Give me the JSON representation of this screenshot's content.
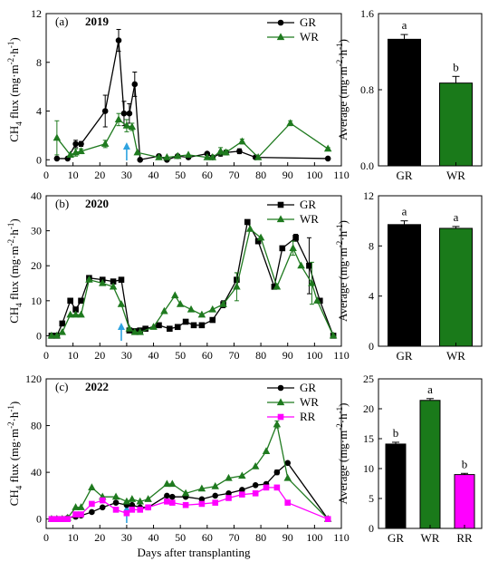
{
  "chart_data": [
    {
      "id": "line2019",
      "type": "line",
      "panel_label": "(a)",
      "year_label": "2019",
      "xlabel": "",
      "ylabel": "CH4 flux (mg·m-2·h-1)",
      "xlim": [
        0,
        110
      ],
      "ylim": [
        -0.5,
        12
      ],
      "xticks": [
        0,
        10,
        20,
        30,
        40,
        50,
        60,
        70,
        80,
        90,
        100,
        110
      ],
      "yticks": [
        0,
        4,
        8,
        12
      ],
      "arrow_x": 30,
      "legend": "top-right",
      "series": [
        {
          "name": "GR",
          "color": "#000000",
          "marker": "circle",
          "x": [
            4,
            8,
            11,
            13,
            22,
            27,
            29,
            31,
            33,
            35,
            42,
            45,
            49,
            53,
            60,
            62,
            65,
            67,
            72,
            78,
            105
          ],
          "y": [
            0.1,
            0.1,
            1.3,
            1.3,
            4,
            9.8,
            3.8,
            3.8,
            6.2,
            0,
            0.3,
            0,
            0.3,
            0.2,
            0.5,
            0.2,
            0.5,
            0.6,
            0.7,
            0.2,
            0.1
          ],
          "err": [
            0,
            0,
            0.3,
            0.2,
            1.3,
            0.9,
            1,
            0.8,
            1,
            0,
            0,
            0,
            0,
            0,
            0.1,
            0,
            0.2,
            0.2,
            0.2,
            0,
            0
          ]
        },
        {
          "name": "WR",
          "color": "#1f7a1f",
          "marker": "triangle",
          "x": [
            4,
            9,
            11,
            13,
            22,
            27,
            30,
            32,
            34,
            42,
            45,
            49,
            53,
            60,
            62,
            65,
            67,
            73,
            79,
            91,
            105
          ],
          "y": [
            1.8,
            0.4,
            0.6,
            0.7,
            1.3,
            3.3,
            2.8,
            2.7,
            0.6,
            0.2,
            0.2,
            0.3,
            0.4,
            0.2,
            0.2,
            0.7,
            0.6,
            1.5,
            0.2,
            3,
            0.9
          ],
          "err": [
            1.4,
            0,
            0.3,
            0.2,
            0.3,
            0.5,
            0.5,
            0.3,
            0,
            0,
            0,
            0,
            0,
            0,
            0,
            0.3,
            0.2,
            0.2,
            0,
            0.2,
            0.1
          ]
        }
      ]
    },
    {
      "id": "bar2019",
      "type": "bar",
      "xlabel": "",
      "ylabel": "Average (mg·m-2·h-1)",
      "categories": [
        "GR",
        "WR"
      ],
      "values": [
        1.33,
        0.87
      ],
      "errors": [
        0.05,
        0.07
      ],
      "colors": [
        "#000000",
        "#1a7a1a"
      ],
      "letters": [
        "a",
        "b"
      ],
      "ylim": [
        0,
        1.6
      ],
      "yticks": [
        0.0,
        0.8,
        1.6
      ],
      "ytick_labels": [
        "0.0",
        "0.8",
        "1.6"
      ]
    },
    {
      "id": "line2020",
      "type": "line",
      "panel_label": "(b)",
      "year_label": "2020",
      "xlabel": "",
      "ylabel": "CH4 flux (mg·m-2·h-1)",
      "xlim": [
        0,
        110
      ],
      "ylim": [
        -3,
        40
      ],
      "xticks": [
        0,
        10,
        20,
        30,
        40,
        50,
        60,
        70,
        80,
        90,
        100,
        110
      ],
      "yticks": [
        0,
        10,
        20,
        30,
        40
      ],
      "arrow_x": 28,
      "legend": "top-right",
      "series": [
        {
          "name": "GR",
          "color": "#000000",
          "marker": "square",
          "x": [
            2,
            4,
            6,
            9,
            11,
            13,
            16,
            21,
            25,
            28,
            31,
            33,
            35,
            37,
            42,
            46,
            49,
            52,
            55,
            58,
            62,
            66,
            71,
            75,
            79,
            85,
            88,
            93,
            98,
            102,
            107
          ],
          "y": [
            0,
            0,
            3.5,
            10,
            7.5,
            10,
            16.5,
            16,
            15.5,
            16,
            1.5,
            1.3,
            1.5,
            2,
            3,
            2,
            2.5,
            4,
            3,
            3,
            4.5,
            9,
            16,
            32.5,
            27,
            14,
            25,
            28,
            20,
            10,
            0
          ],
          "err": [
            0,
            0,
            0,
            0,
            0,
            0,
            0,
            0,
            0,
            0,
            0,
            0,
            0,
            0,
            0,
            0,
            0,
            0,
            0,
            0,
            0,
            1,
            2,
            0.5,
            0,
            0,
            0,
            1,
            8,
            0,
            0.5
          ]
        },
        {
          "name": "WR",
          "color": "#1f7a1f",
          "marker": "triangle",
          "x": [
            2,
            4,
            6,
            9,
            11,
            13,
            16,
            21,
            25,
            28,
            31,
            33,
            35,
            40,
            44,
            48,
            50,
            54,
            58,
            62,
            66,
            71,
            76,
            80,
            86,
            92,
            95,
            99,
            101,
            107
          ],
          "y": [
            0,
            0,
            1,
            6,
            6,
            6,
            16,
            15,
            14,
            9,
            2,
            1,
            1,
            2.5,
            7,
            11.5,
            9,
            7.5,
            6,
            7.5,
            9,
            14,
            30.5,
            28,
            14,
            25,
            20,
            15,
            10,
            0
          ],
          "err": [
            0,
            0,
            0,
            0,
            0,
            0,
            0,
            0,
            0,
            0,
            0,
            0,
            0,
            0,
            0,
            0,
            0,
            0,
            0,
            0,
            0,
            4,
            0,
            0,
            0,
            2,
            0,
            6,
            0,
            0
          ]
        }
      ]
    },
    {
      "id": "bar2020",
      "type": "bar",
      "xlabel": "",
      "ylabel": "Average (mg·m-2·h-1)",
      "categories": [
        "GR",
        "WR"
      ],
      "values": [
        9.7,
        9.4
      ],
      "errors": [
        0.3,
        0.15
      ],
      "colors": [
        "#000000",
        "#1a7a1a"
      ],
      "letters": [
        "a",
        "a"
      ],
      "ylim": [
        0,
        12
      ],
      "yticks": [
        0,
        4,
        8,
        12
      ],
      "ytick_labels": [
        "0",
        "4",
        "8",
        "12"
      ]
    },
    {
      "id": "line2022",
      "type": "line",
      "panel_label": "(c)",
      "year_label": "2022",
      "xlabel": "Days after transplanting",
      "ylabel": "CH4 flux (mg·m-2·h-1)",
      "xlim": [
        0,
        110
      ],
      "ylim": [
        -8,
        120
      ],
      "xticks": [
        0,
        10,
        20,
        30,
        40,
        50,
        60,
        70,
        80,
        90,
        100,
        110
      ],
      "yticks": [
        0,
        40,
        80,
        120
      ],
      "arrow_x": 30,
      "legend": "top-right",
      "series": [
        {
          "name": "GR",
          "color": "#000000",
          "marker": "circle",
          "x": [
            2,
            4,
            6,
            8,
            11,
            13,
            17,
            21,
            26,
            30,
            32,
            35,
            38,
            45,
            47,
            52,
            58,
            63,
            68,
            73,
            78,
            82,
            86,
            90,
            105
          ],
          "y": [
            0,
            0,
            0,
            1,
            2,
            3,
            6,
            10,
            14,
            12,
            12,
            10,
            10,
            20,
            19,
            19,
            17,
            20,
            22,
            25,
            29,
            30,
            40,
            48,
            0
          ],
          "err": [
            0,
            0,
            0,
            0,
            0,
            0,
            0,
            0,
            0,
            0,
            0,
            0,
            0,
            0,
            0,
            0,
            0,
            0,
            0,
            0,
            0,
            0,
            2,
            0,
            0
          ]
        },
        {
          "name": "WR",
          "color": "#1f7a1f",
          "marker": "triangle",
          "x": [
            2,
            4,
            6,
            8,
            11,
            13,
            17,
            21,
            26,
            30,
            32,
            35,
            38,
            45,
            47,
            52,
            58,
            63,
            68,
            73,
            78,
            82,
            86,
            90,
            105
          ],
          "y": [
            0,
            0,
            0,
            1,
            10,
            10,
            27,
            19,
            19,
            15,
            17,
            15,
            17,
            30,
            30,
            22,
            26,
            28,
            35,
            37,
            45,
            58,
            81,
            35,
            0
          ],
          "err": [
            0,
            0,
            0,
            0,
            0,
            0,
            0,
            0,
            0,
            0,
            0,
            0,
            0,
            0,
            0,
            0,
            0,
            0,
            0,
            0,
            0,
            0,
            3,
            0,
            0
          ]
        },
        {
          "name": "RR",
          "color": "#ff00ff",
          "marker": "square",
          "x": [
            2,
            4,
            6,
            8,
            11,
            13,
            17,
            21,
            26,
            30,
            32,
            35,
            38,
            45,
            47,
            52,
            58,
            63,
            68,
            73,
            78,
            82,
            86,
            90,
            105
          ],
          "y": [
            0,
            0,
            0,
            0,
            4,
            4,
            13,
            16,
            8,
            5,
            8,
            8,
            10,
            15,
            14,
            12,
            13,
            14,
            18,
            21,
            22,
            27,
            27,
            14,
            0
          ],
          "err": [
            0,
            0,
            0,
            0,
            0,
            0,
            0,
            0,
            0,
            0,
            0,
            0,
            0,
            0,
            0,
            0,
            0,
            0,
            0,
            0,
            0,
            0,
            0,
            0,
            0
          ]
        }
      ]
    },
    {
      "id": "bar2022",
      "type": "bar",
      "xlabel": "",
      "ylabel": "Average (mg·m-2·h-1)",
      "categories": [
        "GR",
        "WR",
        "RR"
      ],
      "values": [
        14.1,
        21.4,
        9.0
      ],
      "errors": [
        0.3,
        0.3,
        0.2
      ],
      "colors": [
        "#000000",
        "#1a7a1a",
        "#ff00ff"
      ],
      "letters": [
        "b",
        "a",
        "b"
      ],
      "ylim": [
        0,
        25
      ],
      "yticks": [
        0,
        5,
        10,
        15,
        20,
        25
      ],
      "ytick_labels": [
        "0",
        "5",
        "10",
        "15",
        "20",
        "25"
      ]
    }
  ]
}
